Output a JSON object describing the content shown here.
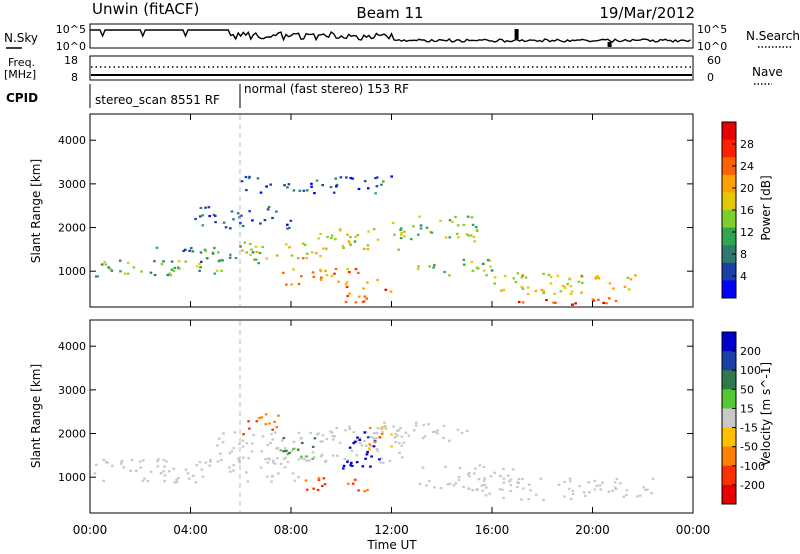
{
  "header": {
    "title": "Unwin (fitACF)",
    "beam": "Beam 11",
    "date": "19/Mar/2012"
  },
  "status_panels": {
    "nsky": {
      "label": "N.Sky",
      "ticks": [
        "10^5",
        "10^0"
      ],
      "right_label": "N.Search",
      "right_ticks": [
        "10^5",
        "10^0"
      ]
    },
    "freq": {
      "label_line1": "Freq.",
      "label_line2": "[MHz]",
      "ticks": [
        "18",
        "8"
      ],
      "right_label": "Nave",
      "right_ticks": [
        "60",
        "0"
      ]
    },
    "cpid": {
      "label": "CPID",
      "segments": [
        {
          "label": "stereo_scan 8551 RF",
          "start_hour": 0
        },
        {
          "label": "normal (fast stereo) 153 RF",
          "start_hour": 6.0
        }
      ]
    }
  },
  "x_axis": {
    "label": "Time UT",
    "range_hours": [
      0,
      24
    ],
    "ticks": [
      "00:00",
      "04:00",
      "08:00",
      "12:00",
      "16:00",
      "20:00",
      "00:00"
    ],
    "tick_hours": [
      0,
      4,
      8,
      12,
      16,
      20,
      24
    ]
  },
  "chart_data": [
    {
      "type": "heatmap",
      "name": "power",
      "ylabel": "Slant Range [km]",
      "ylim": [
        180,
        4600
      ],
      "yticks": [
        1000,
        2000,
        3000,
        4000
      ],
      "colorbar": {
        "label": "Power [dB]",
        "ticks": [
          "4",
          "8",
          "12",
          "16",
          "20",
          "24",
          "28"
        ],
        "range": [
          0,
          32
        ],
        "colors": [
          "#0000ff",
          "#1a3fa8",
          "#2e7a6e",
          "#2fa650",
          "#7fcf2a",
          "#e6c800",
          "#ffa000",
          "#ff6000",
          "#ff2000",
          "#e60000"
        ]
      },
      "bands": [
        {
          "t": [
            0.0,
            5.5
          ],
          "r": [
            900,
            1300
          ],
          "level": 12
        },
        {
          "t": [
            2.5,
            7.0
          ],
          "r": [
            1200,
            1600
          ],
          "level": 10
        },
        {
          "t": [
            6.0,
            9.5
          ],
          "r": [
            1300,
            1700
          ],
          "level": 18
        },
        {
          "t": [
            7.5,
            11.5
          ],
          "r": [
            700,
            1100
          ],
          "level": 22
        },
        {
          "t": [
            9.0,
            12.5
          ],
          "r": [
            1500,
            2000
          ],
          "level": 16
        },
        {
          "t": [
            10.0,
            12.0
          ],
          "r": [
            300,
            700
          ],
          "level": 26
        },
        {
          "t": [
            12.0,
            15.5
          ],
          "r": [
            1700,
            2300
          ],
          "level": 14
        },
        {
          "t": [
            13.0,
            16.0
          ],
          "r": [
            900,
            1300
          ],
          "level": 12
        },
        {
          "t": [
            16.0,
            22.0
          ],
          "r": [
            500,
            1000
          ],
          "level": 18
        },
        {
          "t": [
            17.0,
            21.0
          ],
          "r": [
            200,
            450
          ],
          "level": 27
        },
        {
          "t": [
            4.0,
            8.0
          ],
          "r": [
            2000,
            2500
          ],
          "level": 6
        },
        {
          "t": [
            6.0,
            12.0
          ],
          "r": [
            2800,
            3200
          ],
          "level": 5
        }
      ]
    },
    {
      "type": "heatmap",
      "name": "velocity",
      "ylabel": "Slant Range [km]",
      "ylim": [
        180,
        4600
      ],
      "yticks": [
        1000,
        2000,
        3000,
        4000
      ],
      "colorbar": {
        "label": "Velocity [m s^-1]",
        "ticks": [
          "200",
          "100",
          "50",
          "15",
          "-15",
          "-50",
          "-100",
          "-200"
        ],
        "colors": [
          "#0000cc",
          "#1a3fa8",
          "#2e7a4a",
          "#52c832",
          "#c8c8c8",
          "#ffc000",
          "#ff8000",
          "#ff3000",
          "#e60000"
        ]
      },
      "bands": [
        {
          "t": [
            0.0,
            8.5
          ],
          "r": [
            900,
            1450
          ],
          "v": 0
        },
        {
          "t": [
            5.0,
            12.5
          ],
          "r": [
            1350,
            2100
          ],
          "v": 0
        },
        {
          "t": [
            9.0,
            15.0
          ],
          "r": [
            1800,
            2300
          ],
          "v": 0
        },
        {
          "t": [
            15.0,
            22.5
          ],
          "r": [
            500,
            1000
          ],
          "v": 0
        },
        {
          "t": [
            6.0,
            7.5
          ],
          "r": [
            2000,
            2500
          ],
          "v": -60
        },
        {
          "t": [
            10.0,
            11.5
          ],
          "r": [
            1200,
            2100
          ],
          "v": 180
        },
        {
          "t": [
            8.5,
            11.0
          ],
          "r": [
            700,
            1050
          ],
          "v": -90
        },
        {
          "t": [
            7.5,
            9.0
          ],
          "r": [
            1400,
            2000
          ],
          "v": 35
        },
        {
          "t": [
            11.0,
            12.0
          ],
          "r": [
            1600,
            2200
          ],
          "v": -40
        },
        {
          "t": [
            13.0,
            17.0
          ],
          "r": [
            700,
            1300
          ],
          "v": 0
        }
      ]
    }
  ]
}
